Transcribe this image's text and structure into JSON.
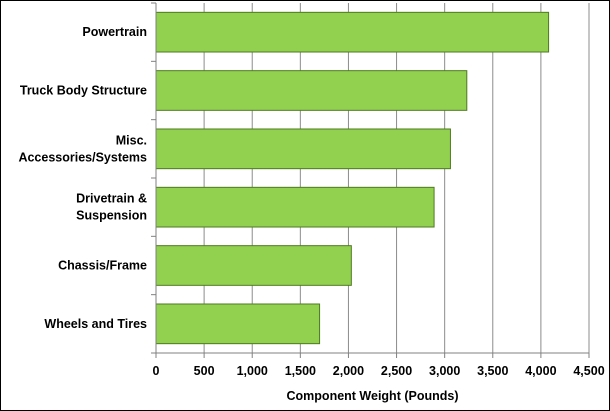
{
  "chart_data": {
    "type": "bar",
    "orientation": "horizontal",
    "categories": [
      "Powertrain",
      "Truck Body Structure",
      "Misc.\nAccessories/Systems",
      "Drivetrain &\nSuspension",
      "Chassis/Frame",
      "Wheels and Tires"
    ],
    "values": [
      4080,
      3230,
      3060,
      2890,
      2030,
      1700
    ],
    "xlabel": "Component Weight (Pounds)",
    "ylabel": "",
    "title": "",
    "xlim": [
      0,
      4500
    ],
    "xticks": [
      0,
      500,
      1000,
      1500,
      2000,
      2500,
      3000,
      3500,
      4000,
      4500
    ],
    "xtick_labels": [
      "0",
      "500",
      "1,000",
      "1,500",
      "2,000",
      "2,500",
      "3,000",
      "3,500",
      "4,000",
      "4,500"
    ],
    "grid": "vertical",
    "legend": "none",
    "colors": {
      "bar_fill": "#92d050",
      "bar_stroke": "#4e7a1e",
      "grid": "#8c8c8c",
      "axis": "#808080"
    }
  }
}
